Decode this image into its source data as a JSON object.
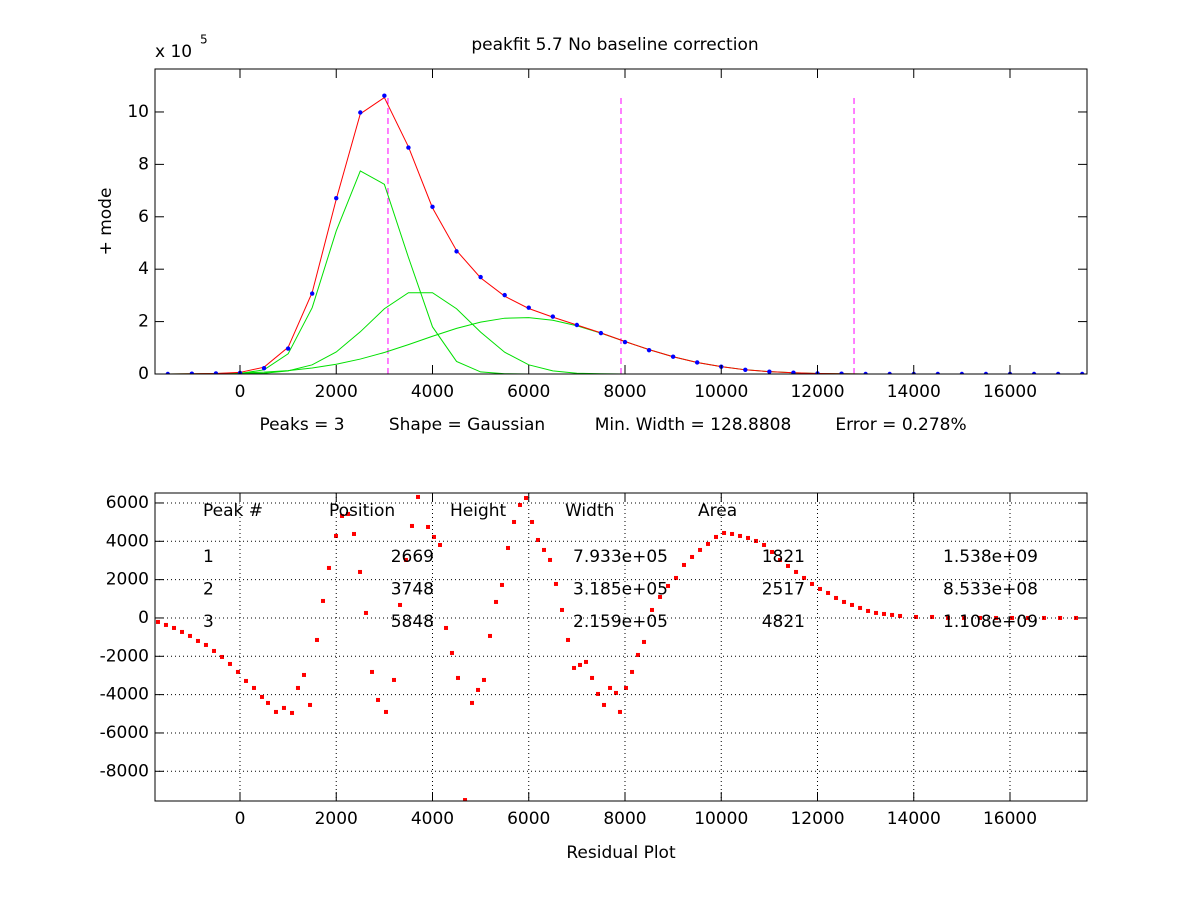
{
  "chart_data": [
    {
      "type": "line",
      "title": "peakfit 5.7   No baseline correction",
      "ylabel": "+ mode",
      "y_multiplier": {
        "text": "x 10",
        "exponent": "5"
      },
      "xlabel_parts": [
        "Peaks = 3",
        "Shape = Gaussian",
        "Min. Width = 128.8808",
        "Error = 0.278%"
      ],
      "xlim": [
        -1766,
        17600
      ],
      "ylim": [
        0,
        11.64
      ],
      "xticks": [
        0,
        2000,
        4000,
        6000,
        8000,
        10000,
        12000,
        14000,
        16000
      ],
      "yticks": [
        0,
        2,
        4,
        6,
        8,
        10
      ],
      "grid": false,
      "x": [
        -1500,
        -1000,
        -500,
        0,
        500,
        1000,
        1500,
        2000,
        2500,
        3000,
        3500,
        4000,
        4500,
        5000,
        5500,
        6000,
        6500,
        7000,
        7500,
        8000,
        8500,
        9000,
        9500,
        10000,
        10500,
        11000,
        11500,
        12000,
        12500,
        13000,
        13500,
        14000,
        14500,
        15000,
        15500,
        16000,
        16500,
        17000,
        17500
      ],
      "series": [
        {
          "style": "markers",
          "color": "#0000ff",
          "values": [
            0.0,
            0.01,
            0.02,
            0.04,
            0.22,
            0.97,
            3.07,
            6.71,
            9.98,
            10.62,
            8.64,
            6.38,
            4.68,
            3.7,
            3.01,
            2.53,
            2.19,
            1.87,
            1.56,
            1.22,
            0.91,
            0.66,
            0.44,
            0.28,
            0.16,
            0.09,
            0.05,
            0.02,
            0.01,
            0.0,
            0.0,
            0.0,
            0.0,
            0.0,
            0.0,
            0.0,
            0.0,
            0.0,
            0.0
          ]
        },
        {
          "style": "line",
          "color": "#ff0000",
          "values": [
            0.0,
            0.01,
            0.02,
            0.06,
            0.26,
            1.02,
            3.11,
            6.67,
            9.93,
            10.55,
            8.67,
            6.34,
            4.71,
            3.67,
            2.97,
            2.5,
            2.17,
            1.87,
            1.57,
            1.24,
            0.93,
            0.66,
            0.44,
            0.28,
            0.16,
            0.09,
            0.05,
            0.02,
            0.01,
            0.0,
            0.0,
            0.0,
            0.0,
            0.0,
            0.0,
            0.0,
            0.0,
            0.0,
            0.0
          ]
        },
        {
          "style": "line",
          "color": "#00e000",
          "values": [
            0.0,
            0.0,
            0.0,
            0.02,
            0.16,
            0.77,
            2.53,
            5.46,
            7.75,
            7.24,
            4.45,
            1.8,
            0.48,
            0.08,
            0.01,
            0.0,
            0.0,
            0.0,
            0.0,
            0.0,
            0.0,
            0.0,
            0.0,
            0.0,
            0.0,
            0.0,
            0.0,
            0.0,
            0.0,
            0.0,
            0.0,
            0.0,
            0.0,
            0.0,
            0.0,
            0.0,
            0.0,
            0.0,
            0.0
          ]
        },
        {
          "style": "line",
          "color": "#00e000",
          "values": [
            0.0,
            0.0,
            0.0,
            0.01,
            0.03,
            0.12,
            0.35,
            0.84,
            1.61,
            2.49,
            3.1,
            3.1,
            2.49,
            1.6,
            0.83,
            0.35,
            0.12,
            0.03,
            0.01,
            0.0,
            0.0,
            0.0,
            0.0,
            0.0,
            0.0,
            0.0,
            0.0,
            0.0,
            0.0,
            0.0,
            0.0,
            0.0,
            0.0,
            0.0,
            0.0,
            0.0,
            0.0,
            0.0,
            0.0
          ]
        },
        {
          "style": "line",
          "color": "#00e000",
          "values": [
            0.0,
            0.01,
            0.02,
            0.04,
            0.07,
            0.13,
            0.23,
            0.37,
            0.57,
            0.82,
            1.12,
            1.44,
            1.74,
            1.98,
            2.13,
            2.15,
            2.05,
            1.84,
            1.56,
            1.24,
            0.93,
            0.66,
            0.44,
            0.28,
            0.16,
            0.09,
            0.05,
            0.02,
            0.01,
            0.0,
            0.0,
            0.0,
            0.0,
            0.0,
            0.0,
            0.0,
            0.0,
            0.0,
            0.0
          ]
        }
      ],
      "vlines": {
        "values": [
          3075,
          7917,
          12759
        ],
        "color": "#ff00ff",
        "style": "dashed"
      }
    },
    {
      "type": "scatter",
      "xlabel": "Residual Plot",
      "xlim": [
        -1766,
        17600
      ],
      "ylim": [
        -9550,
        6520
      ],
      "xticks": [
        0,
        2000,
        4000,
        6000,
        8000,
        10000,
        12000,
        14000,
        16000
      ],
      "yticks": [
        -8000,
        -6000,
        -4000,
        -2000,
        0,
        2000,
        4000,
        6000
      ],
      "grid": true,
      "color": "#ff0000",
      "x": [
        -1704,
        -1538,
        -1371,
        -1205,
        -1039,
        -873,
        -707,
        -540,
        -374,
        -208,
        -42,
        125,
        291,
        457,
        582,
        748,
        914,
        1081,
        1205,
        1330,
        1455,
        1600,
        1725,
        1849,
        1995,
        2120,
        2244,
        2369,
        2494,
        2618,
        2743,
        2868,
        3034,
        3200,
        3325,
        3449,
        3574,
        3699,
        3907,
        4031,
        4156,
        4281,
        4405,
        4530,
        4676,
        4821,
        4946,
        5070,
        5195,
        5320,
        5444,
        5569,
        5694,
        5818,
        5943,
        6068,
        6192,
        6317,
        6442,
        6566,
        6691,
        6816,
        6941,
        7065,
        7190,
        7315,
        7439,
        7564,
        7689,
        7813,
        7896,
        8021,
        8146,
        8270,
        8395,
        8561,
        8728,
        8894,
        9060,
        9226,
        9393,
        9559,
        9725,
        9891,
        10058,
        10224,
        10390,
        10556,
        10722,
        10889,
        11055,
        11221,
        11387,
        11554,
        11720,
        11886,
        12052,
        12219,
        12385,
        12551,
        12717,
        12884,
        13050,
        13216,
        13382,
        13549,
        13715,
        14047,
        14380,
        14712,
        15045,
        15377,
        15710,
        16042,
        16375,
        16707,
        17040,
        17372
      ],
      "values": [
        -209,
        -365,
        -522,
        -730,
        -939,
        -1200,
        -1409,
        -1722,
        -2035,
        -2400,
        -2817,
        -3287,
        -3652,
        -4121,
        -4434,
        -4904,
        -4695,
        -4956,
        -3652,
        -2974,
        -4539,
        -1148,
        887,
        2609,
        4278,
        5321,
        5426,
        4382,
        2400,
        261,
        -2817,
        -4278,
        -4904,
        -3235,
        678,
        3026,
        4800,
        6313,
        4747,
        4226,
        3808,
        -522,
        -1826,
        -3130,
        -9500,
        -4434,
        -3756,
        -3235,
        -939,
        835,
        1722,
        3652,
        5008,
        5895,
        6260,
        5008,
        4069,
        3548,
        3026,
        1774,
        417,
        -1148,
        -2609,
        -2452,
        -2295,
        -3130,
        -3965,
        -4539,
        -3652,
        -3913,
        -4904,
        -3652,
        -2817,
        -1930,
        -1252,
        417,
        1096,
        1669,
        2087,
        2765,
        3182,
        3548,
        3861,
        4226,
        4434,
        4382,
        4278,
        4174,
        4017,
        3808,
        3443,
        3026,
        2713,
        2400,
        2087,
        1774,
        1513,
        1304,
        1043,
        835,
        678,
        522,
        365,
        261,
        209,
        157,
        104,
        52,
        52,
        0,
        0,
        0,
        0,
        0,
        0,
        0,
        0,
        0
      ],
      "table": {
        "headers": [
          "Peak #",
          "Position",
          "Height",
          "Width",
          "Area"
        ],
        "rows": [
          [
            "1",
            "2669",
            "7.933e+05",
            "1821",
            "1.538e+09"
          ],
          [
            "2",
            "3748",
            "3.185e+05",
            "2517",
            "8.533e+08"
          ],
          [
            "3",
            "5848",
            "2.159e+05",
            "4821",
            "1.108e+09"
          ]
        ]
      }
    }
  ]
}
